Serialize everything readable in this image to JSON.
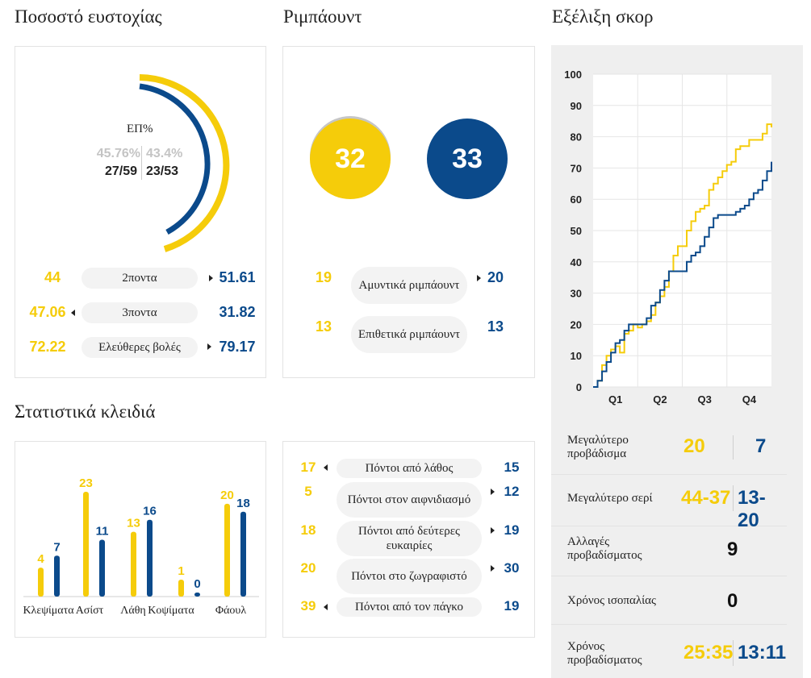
{
  "titles": {
    "shooting": "Ποσοστό ευστοχίας",
    "rebounds": "Ριμπάουντ",
    "score_progress": "Εξέλιξη σκορ",
    "key_stats": "Στατιστικά κλειδιά"
  },
  "colors": {
    "yellow": "#f5cc0a",
    "blue": "#0b4a8b",
    "gray": "#f3f3f3"
  },
  "shooting": {
    "donut_label": "ΕΠ%",
    "team1_pct": "45.76%",
    "team2_pct": "43.4%",
    "team1_made": "27/59",
    "team2_made": "23/53",
    "team1_pct_value": 45.76,
    "team2_pct_value": 43.4,
    "rows": [
      {
        "label": "2ποντα",
        "team1": "44",
        "team2": "51.61",
        "leader": "team2"
      },
      {
        "label": "3ποντα",
        "team1": "47.06",
        "team2": "31.82",
        "leader": "team1"
      },
      {
        "label": "Ελεύθερες βολές",
        "team1": "72.22",
        "team2": "79.17",
        "leader": "team2"
      }
    ]
  },
  "rebounds": {
    "team1_total": "32",
    "team2_total": "33",
    "rows": [
      {
        "label": "Αμυντικά ριμπάουντ",
        "team1": "19",
        "team2": "20",
        "leader": "team2"
      },
      {
        "label": "Επιθετικά ριμπάουντ",
        "team1": "13",
        "team2": "13",
        "leader": "none"
      }
    ]
  },
  "key_stats": {
    "bars": [
      {
        "label": "Κλεψίματα",
        "team1": 4,
        "team2": 7
      },
      {
        "label": "Ασίστ",
        "team1": 23,
        "team2": 11
      },
      {
        "label": "Λάθη",
        "team1": 13,
        "team2": 16
      },
      {
        "label": "Κοψίματα",
        "team1": 1,
        "team2": 0
      },
      {
        "label": "Φάουλ",
        "team1": 20,
        "team2": 18
      }
    ],
    "points": [
      {
        "label": "Πόντοι από λάθος",
        "team1": "17",
        "team2": "15",
        "leader": "team1"
      },
      {
        "label": "Πόντοι στον αιφνιδιασμό",
        "team1": "5",
        "team2": "12",
        "leader": "team2"
      },
      {
        "label": "Πόντοι από δεύτερες ευκαιρίες",
        "team1": "18",
        "team2": "19",
        "leader": "team2"
      },
      {
        "label": "Πόντοι στο ζωγραφιστό",
        "team1": "20",
        "team2": "30",
        "leader": "team2"
      },
      {
        "label": "Πόντοι από τον πάγκο",
        "team1": "39",
        "team2": "19",
        "leader": "team1"
      }
    ]
  },
  "chart_data": {
    "type": "line",
    "x_ticks": [
      "Q1",
      "Q2",
      "Q3",
      "Q4"
    ],
    "y_ticks": [
      "0",
      "10",
      "20",
      "30",
      "40",
      "50",
      "60",
      "70",
      "80",
      "90",
      "100"
    ],
    "ylim": [
      0,
      100
    ],
    "xlim": [
      0,
      40
    ],
    "series": [
      {
        "color": "#f5cc0a",
        "points": [
          [
            0,
            0
          ],
          [
            1,
            2
          ],
          [
            2,
            7
          ],
          [
            3,
            10
          ],
          [
            4,
            12
          ],
          [
            5,
            13
          ],
          [
            6,
            11
          ],
          [
            7,
            17
          ],
          [
            8,
            18
          ],
          [
            9,
            20
          ],
          [
            10,
            19
          ],
          [
            11,
            20
          ],
          [
            12,
            21
          ],
          [
            13,
            23
          ],
          [
            14,
            27
          ],
          [
            15,
            29
          ],
          [
            16,
            32
          ],
          [
            17,
            37
          ],
          [
            18,
            42
          ],
          [
            19,
            45
          ],
          [
            20,
            45
          ],
          [
            21,
            50
          ],
          [
            22,
            53
          ],
          [
            23,
            56
          ],
          [
            24,
            57
          ],
          [
            25,
            58
          ],
          [
            26,
            63
          ],
          [
            27,
            65
          ],
          [
            28,
            67
          ],
          [
            29,
            69
          ],
          [
            30,
            71
          ],
          [
            31,
            72
          ],
          [
            32,
            76
          ],
          [
            33,
            77
          ],
          [
            34,
            77
          ],
          [
            35,
            79
          ],
          [
            36,
            79
          ],
          [
            37,
            79
          ],
          [
            38,
            81
          ],
          [
            39,
            84
          ],
          [
            40,
            83
          ]
        ]
      },
      {
        "color": "#0b4a8b",
        "points": [
          [
            0,
            0
          ],
          [
            1,
            2
          ],
          [
            2,
            5
          ],
          [
            3,
            8
          ],
          [
            4,
            11
          ],
          [
            5,
            14
          ],
          [
            6,
            15
          ],
          [
            7,
            18
          ],
          [
            8,
            20
          ],
          [
            9,
            20
          ],
          [
            10,
            20
          ],
          [
            11,
            20
          ],
          [
            12,
            22
          ],
          [
            13,
            26
          ],
          [
            14,
            27
          ],
          [
            15,
            31
          ],
          [
            16,
            34
          ],
          [
            17,
            37
          ],
          [
            18,
            37
          ],
          [
            19,
            37
          ],
          [
            20,
            37
          ],
          [
            21,
            40
          ],
          [
            22,
            42
          ],
          [
            23,
            43
          ],
          [
            24,
            45
          ],
          [
            25,
            48
          ],
          [
            26,
            51
          ],
          [
            27,
            54
          ],
          [
            28,
            55
          ],
          [
            29,
            55
          ],
          [
            30,
            55
          ],
          [
            31,
            55
          ],
          [
            32,
            56
          ],
          [
            33,
            57
          ],
          [
            34,
            58
          ],
          [
            35,
            60
          ],
          [
            36,
            62
          ],
          [
            37,
            63
          ],
          [
            38,
            66
          ],
          [
            39,
            69
          ],
          [
            40,
            72
          ]
        ]
      }
    ]
  },
  "summary": [
    {
      "label": "Μεγαλύτερο προβάδισμα",
      "team1": "20",
      "team2": "7"
    },
    {
      "label": "Μεγαλύτερο σερί",
      "team1": "44-37",
      "team2": "13-20"
    },
    {
      "label": "Αλλαγές προβαδίσματος",
      "value": "9"
    },
    {
      "label": "Χρόνος ισοπαλίας",
      "value": "0"
    },
    {
      "label": "Χρόνος προβαδίσματος",
      "team1": "25:35",
      "team2": "13:11"
    }
  ]
}
